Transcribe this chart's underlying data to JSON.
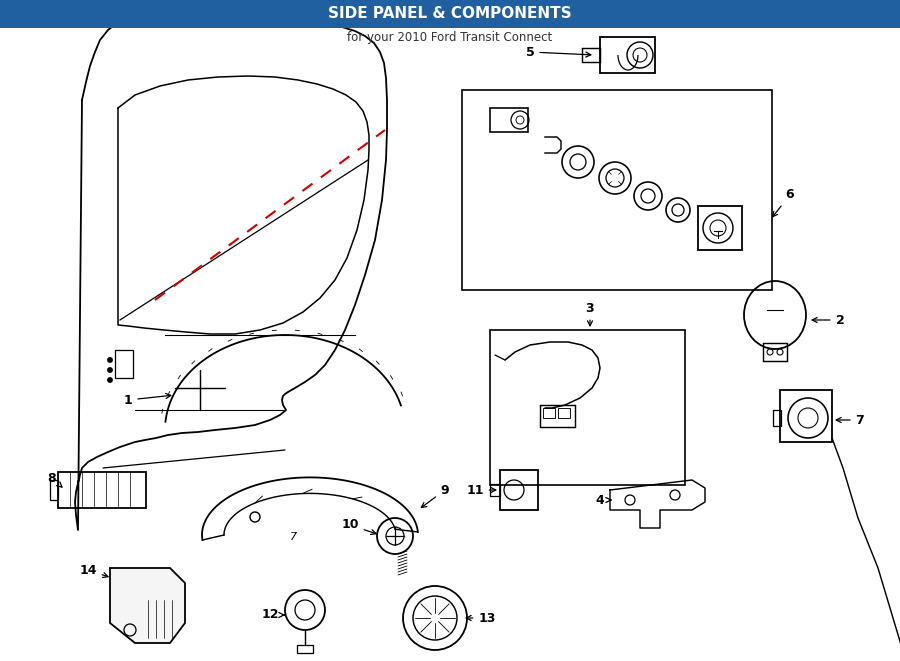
{
  "title": "SIDE PANEL & COMPONENTS",
  "subtitle": "for your 2010 Ford Transit Connect",
  "bg": "#ffffff",
  "lc": "#000000",
  "rc": "#cc0000",
  "fig_w": 9.0,
  "fig_h": 6.61,
  "dpi": 100
}
